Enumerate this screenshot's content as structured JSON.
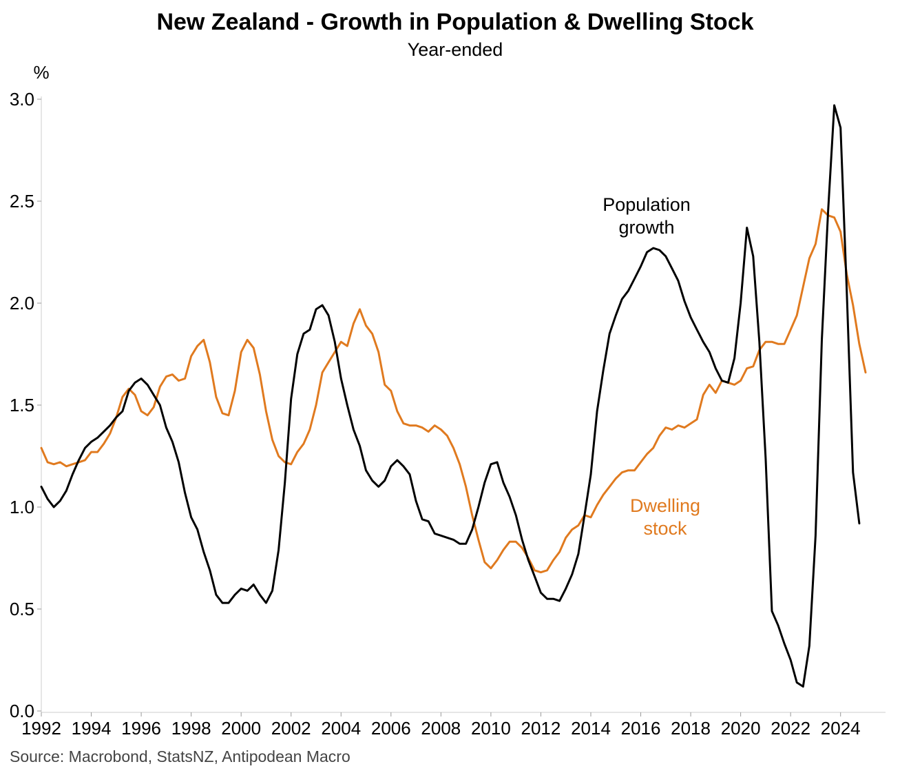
{
  "chart_data": {
    "type": "line",
    "title": "New Zealand - Growth in Population & Dwelling Stock",
    "subtitle": "Year-ended",
    "ylabel": "%",
    "source": "Source: Macrobond, StatsNZ, Antipodean Macro",
    "xlim": [
      1992,
      2025.8
    ],
    "ylim": [
      0,
      3
    ],
    "y_ticks": [
      "0.0",
      "0.5",
      "1.0",
      "1.5",
      "2.0",
      "2.5",
      "3.0"
    ],
    "x_ticks": [
      "1992",
      "1994",
      "1996",
      "1998",
      "2000",
      "2002",
      "2004",
      "2006",
      "2008",
      "2010",
      "2012",
      "2014",
      "2016",
      "2018",
      "2020",
      "2022",
      "2024"
    ],
    "grid": false,
    "series": [
      {
        "name": "Population growth",
        "color": "#000000",
        "annotation": [
          "Population",
          "growth"
        ],
        "points": [
          [
            1992.0,
            1.1
          ],
          [
            1992.25,
            1.04
          ],
          [
            1992.5,
            1.0
          ],
          [
            1992.75,
            1.03
          ],
          [
            1993.0,
            1.08
          ],
          [
            1993.25,
            1.16
          ],
          [
            1993.5,
            1.23
          ],
          [
            1993.75,
            1.29
          ],
          [
            1994.0,
            1.32
          ],
          [
            1994.25,
            1.34
          ],
          [
            1994.5,
            1.37
          ],
          [
            1994.75,
            1.4
          ],
          [
            1995.0,
            1.44
          ],
          [
            1995.25,
            1.47
          ],
          [
            1995.5,
            1.57
          ],
          [
            1995.75,
            1.61
          ],
          [
            1996.0,
            1.63
          ],
          [
            1996.25,
            1.6
          ],
          [
            1996.5,
            1.55
          ],
          [
            1996.75,
            1.5
          ],
          [
            1997.0,
            1.39
          ],
          [
            1997.25,
            1.32
          ],
          [
            1997.5,
            1.22
          ],
          [
            1997.75,
            1.07
          ],
          [
            1998.0,
            0.95
          ],
          [
            1998.25,
            0.89
          ],
          [
            1998.5,
            0.78
          ],
          [
            1998.75,
            0.69
          ],
          [
            1999.0,
            0.57
          ],
          [
            1999.25,
            0.53
          ],
          [
            1999.5,
            0.53
          ],
          [
            1999.75,
            0.57
          ],
          [
            2000.0,
            0.6
          ],
          [
            2000.25,
            0.59
          ],
          [
            2000.5,
            0.62
          ],
          [
            2000.75,
            0.57
          ],
          [
            2001.0,
            0.53
          ],
          [
            2001.25,
            0.59
          ],
          [
            2001.5,
            0.79
          ],
          [
            2001.75,
            1.12
          ],
          [
            2002.0,
            1.53
          ],
          [
            2002.25,
            1.75
          ],
          [
            2002.5,
            1.85
          ],
          [
            2002.75,
            1.87
          ],
          [
            2003.0,
            1.97
          ],
          [
            2003.25,
            1.99
          ],
          [
            2003.5,
            1.94
          ],
          [
            2003.75,
            1.81
          ],
          [
            2004.0,
            1.63
          ],
          [
            2004.25,
            1.5
          ],
          [
            2004.5,
            1.38
          ],
          [
            2004.75,
            1.3
          ],
          [
            2005.0,
            1.18
          ],
          [
            2005.25,
            1.13
          ],
          [
            2005.5,
            1.1
          ],
          [
            2005.75,
            1.13
          ],
          [
            2006.0,
            1.2
          ],
          [
            2006.25,
            1.23
          ],
          [
            2006.5,
            1.2
          ],
          [
            2006.75,
            1.16
          ],
          [
            2007.0,
            1.03
          ],
          [
            2007.25,
            0.94
          ],
          [
            2007.5,
            0.93
          ],
          [
            2007.75,
            0.87
          ],
          [
            2008.0,
            0.86
          ],
          [
            2008.25,
            0.85
          ],
          [
            2008.5,
            0.84
          ],
          [
            2008.75,
            0.82
          ],
          [
            2009.0,
            0.82
          ],
          [
            2009.25,
            0.89
          ],
          [
            2009.5,
            1.0
          ],
          [
            2009.75,
            1.12
          ],
          [
            2010.0,
            1.21
          ],
          [
            2010.25,
            1.22
          ],
          [
            2010.5,
            1.12
          ],
          [
            2010.75,
            1.05
          ],
          [
            2011.0,
            0.96
          ],
          [
            2011.25,
            0.84
          ],
          [
            2011.5,
            0.74
          ],
          [
            2011.75,
            0.66
          ],
          [
            2012.0,
            0.58
          ],
          [
            2012.25,
            0.55
          ],
          [
            2012.5,
            0.55
          ],
          [
            2012.75,
            0.54
          ],
          [
            2013.0,
            0.6
          ],
          [
            2013.25,
            0.67
          ],
          [
            2013.5,
            0.77
          ],
          [
            2013.75,
            0.96
          ],
          [
            2014.0,
            1.16
          ],
          [
            2014.25,
            1.47
          ],
          [
            2014.5,
            1.67
          ],
          [
            2014.75,
            1.85
          ],
          [
            2015.0,
            1.94
          ],
          [
            2015.25,
            2.02
          ],
          [
            2015.5,
            2.06
          ],
          [
            2015.75,
            2.12
          ],
          [
            2016.0,
            2.18
          ],
          [
            2016.25,
            2.25
          ],
          [
            2016.5,
            2.27
          ],
          [
            2016.75,
            2.26
          ],
          [
            2017.0,
            2.23
          ],
          [
            2017.25,
            2.17
          ],
          [
            2017.5,
            2.11
          ],
          [
            2017.75,
            2.01
          ],
          [
            2018.0,
            1.93
          ],
          [
            2018.25,
            1.87
          ],
          [
            2018.5,
            1.81
          ],
          [
            2018.75,
            1.76
          ],
          [
            2019.0,
            1.68
          ],
          [
            2019.25,
            1.62
          ],
          [
            2019.5,
            1.61
          ],
          [
            2019.75,
            1.73
          ],
          [
            2020.0,
            2.0
          ],
          [
            2020.25,
            2.37
          ],
          [
            2020.5,
            2.23
          ],
          [
            2020.75,
            1.81
          ],
          [
            2021.0,
            1.24
          ],
          [
            2021.25,
            0.49
          ],
          [
            2021.5,
            0.42
          ],
          [
            2021.75,
            0.33
          ],
          [
            2022.0,
            0.25
          ],
          [
            2022.25,
            0.14
          ],
          [
            2022.5,
            0.12
          ],
          [
            2022.75,
            0.32
          ],
          [
            2023.0,
            0.86
          ],
          [
            2023.25,
            1.82
          ],
          [
            2023.5,
            2.45
          ],
          [
            2023.75,
            2.97
          ],
          [
            2024.0,
            2.86
          ],
          [
            2024.25,
            2.05
          ],
          [
            2024.5,
            1.17
          ],
          [
            2024.75,
            0.92
          ]
        ]
      },
      {
        "name": "Dwelling stock",
        "color": "#e07a1f",
        "annotation": [
          "Dwelling",
          "stock"
        ],
        "points": [
          [
            1992.0,
            1.29
          ],
          [
            1992.25,
            1.22
          ],
          [
            1992.5,
            1.21
          ],
          [
            1992.75,
            1.22
          ],
          [
            1993.0,
            1.2
          ],
          [
            1993.25,
            1.21
          ],
          [
            1993.5,
            1.22
          ],
          [
            1993.75,
            1.23
          ],
          [
            1994.0,
            1.27
          ],
          [
            1994.25,
            1.27
          ],
          [
            1994.5,
            1.31
          ],
          [
            1994.75,
            1.36
          ],
          [
            1995.0,
            1.44
          ],
          [
            1995.25,
            1.54
          ],
          [
            1995.5,
            1.58
          ],
          [
            1995.75,
            1.55
          ],
          [
            1996.0,
            1.47
          ],
          [
            1996.25,
            1.45
          ],
          [
            1996.5,
            1.49
          ],
          [
            1996.75,
            1.59
          ],
          [
            1997.0,
            1.64
          ],
          [
            1997.25,
            1.65
          ],
          [
            1997.5,
            1.62
          ],
          [
            1997.75,
            1.63
          ],
          [
            1998.0,
            1.74
          ],
          [
            1998.25,
            1.79
          ],
          [
            1998.5,
            1.82
          ],
          [
            1998.75,
            1.71
          ],
          [
            1999.0,
            1.54
          ],
          [
            1999.25,
            1.46
          ],
          [
            1999.5,
            1.45
          ],
          [
            1999.75,
            1.57
          ],
          [
            2000.0,
            1.76
          ],
          [
            2000.25,
            1.82
          ],
          [
            2000.5,
            1.78
          ],
          [
            2000.75,
            1.65
          ],
          [
            2001.0,
            1.47
          ],
          [
            2001.25,
            1.33
          ],
          [
            2001.5,
            1.25
          ],
          [
            2001.75,
            1.22
          ],
          [
            2002.0,
            1.21
          ],
          [
            2002.25,
            1.27
          ],
          [
            2002.5,
            1.31
          ],
          [
            2002.75,
            1.38
          ],
          [
            2003.0,
            1.5
          ],
          [
            2003.25,
            1.66
          ],
          [
            2003.5,
            1.71
          ],
          [
            2003.75,
            1.76
          ],
          [
            2004.0,
            1.81
          ],
          [
            2004.25,
            1.79
          ],
          [
            2004.5,
            1.9
          ],
          [
            2004.75,
            1.97
          ],
          [
            2005.0,
            1.89
          ],
          [
            2005.25,
            1.85
          ],
          [
            2005.5,
            1.76
          ],
          [
            2005.75,
            1.6
          ],
          [
            2006.0,
            1.57
          ],
          [
            2006.25,
            1.47
          ],
          [
            2006.5,
            1.41
          ],
          [
            2006.75,
            1.4
          ],
          [
            2007.0,
            1.4
          ],
          [
            2007.25,
            1.39
          ],
          [
            2007.5,
            1.37
          ],
          [
            2007.75,
            1.4
          ],
          [
            2008.0,
            1.38
          ],
          [
            2008.25,
            1.35
          ],
          [
            2008.5,
            1.29
          ],
          [
            2008.75,
            1.21
          ],
          [
            2009.0,
            1.1
          ],
          [
            2009.25,
            0.96
          ],
          [
            2009.5,
            0.84
          ],
          [
            2009.75,
            0.73
          ],
          [
            2010.0,
            0.7
          ],
          [
            2010.25,
            0.74
          ],
          [
            2010.5,
            0.79
          ],
          [
            2010.75,
            0.83
          ],
          [
            2011.0,
            0.83
          ],
          [
            2011.25,
            0.8
          ],
          [
            2011.5,
            0.75
          ],
          [
            2011.75,
            0.69
          ],
          [
            2012.0,
            0.68
          ],
          [
            2012.25,
            0.69
          ],
          [
            2012.5,
            0.74
          ],
          [
            2012.75,
            0.78
          ],
          [
            2013.0,
            0.85
          ],
          [
            2013.25,
            0.89
          ],
          [
            2013.5,
            0.91
          ],
          [
            2013.75,
            0.96
          ],
          [
            2014.0,
            0.95
          ],
          [
            2014.25,
            1.01
          ],
          [
            2014.5,
            1.06
          ],
          [
            2014.75,
            1.1
          ],
          [
            2015.0,
            1.14
          ],
          [
            2015.25,
            1.17
          ],
          [
            2015.5,
            1.18
          ],
          [
            2015.75,
            1.18
          ],
          [
            2016.0,
            1.22
          ],
          [
            2016.25,
            1.26
          ],
          [
            2016.5,
            1.29
          ],
          [
            2016.75,
            1.35
          ],
          [
            2017.0,
            1.39
          ],
          [
            2017.25,
            1.38
          ],
          [
            2017.5,
            1.4
          ],
          [
            2017.75,
            1.39
          ],
          [
            2018.0,
            1.41
          ],
          [
            2018.25,
            1.43
          ],
          [
            2018.5,
            1.55
          ],
          [
            2018.75,
            1.6
          ],
          [
            2019.0,
            1.56
          ],
          [
            2019.25,
            1.62
          ],
          [
            2019.5,
            1.61
          ],
          [
            2019.75,
            1.6
          ],
          [
            2020.0,
            1.62
          ],
          [
            2020.25,
            1.68
          ],
          [
            2020.5,
            1.69
          ],
          [
            2020.75,
            1.77
          ],
          [
            2021.0,
            1.81
          ],
          [
            2021.25,
            1.81
          ],
          [
            2021.5,
            1.8
          ],
          [
            2021.75,
            1.8
          ],
          [
            2022.0,
            1.87
          ],
          [
            2022.25,
            1.94
          ],
          [
            2022.5,
            2.08
          ],
          [
            2022.75,
            2.22
          ],
          [
            2023.0,
            2.29
          ],
          [
            2023.25,
            2.46
          ],
          [
            2023.5,
            2.43
          ],
          [
            2023.75,
            2.42
          ],
          [
            2024.0,
            2.35
          ],
          [
            2024.25,
            2.14
          ],
          [
            2024.5,
            1.99
          ],
          [
            2024.75,
            1.8
          ],
          [
            2025.0,
            1.66
          ]
        ]
      }
    ]
  }
}
